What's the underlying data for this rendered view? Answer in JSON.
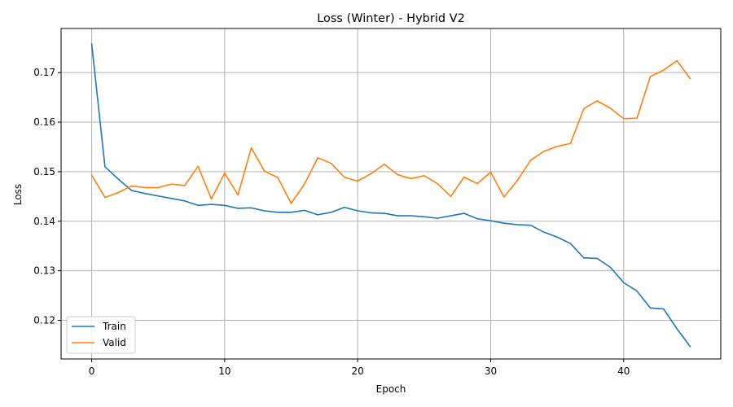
{
  "chart_data": {
    "type": "line",
    "title": "Loss (Winter) - Hybrid V2",
    "xlabel": "Epoch",
    "ylabel": "Loss",
    "xlim": [
      -2.3,
      47.3
    ],
    "ylim": [
      0.1122,
      0.1789
    ],
    "x_ticks": [
      0,
      10,
      20,
      30,
      40
    ],
    "y_ticks": [
      0.12,
      0.13,
      0.14,
      0.15,
      0.16,
      0.17
    ],
    "grid": true,
    "legend_position": "lower-left",
    "x": [
      0,
      1,
      2,
      3,
      4,
      5,
      6,
      7,
      8,
      9,
      10,
      11,
      12,
      13,
      14,
      15,
      16,
      17,
      18,
      19,
      20,
      21,
      22,
      23,
      24,
      25,
      26,
      27,
      28,
      29,
      30,
      31,
      32,
      33,
      34,
      35,
      36,
      37,
      38,
      39,
      40,
      41,
      42,
      43,
      44,
      45
    ],
    "series": [
      {
        "name": "Train",
        "color": "#1f77b4",
        "values": [
          0.1758,
          0.151,
          0.1485,
          0.1462,
          0.1456,
          0.1451,
          0.1446,
          0.1441,
          0.1432,
          0.1434,
          0.1432,
          0.1426,
          0.1427,
          0.1421,
          0.1418,
          0.1418,
          0.1422,
          0.1413,
          0.1418,
          0.1428,
          0.1421,
          0.1417,
          0.1416,
          0.1411,
          0.1411,
          0.1409,
          0.1406,
          0.1411,
          0.1416,
          0.1405,
          0.1401,
          0.1396,
          0.1393,
          0.1392,
          0.1378,
          0.1368,
          0.1355,
          0.1326,
          0.1325,
          0.1307,
          0.1276,
          0.1259,
          0.1225,
          0.1223,
          0.1183,
          0.1147
        ]
      },
      {
        "name": "Valid",
        "color": "#ff7f0e",
        "values": [
          0.1493,
          0.1448,
          0.1458,
          0.1471,
          0.1468,
          0.1468,
          0.1475,
          0.1472,
          0.1511,
          0.1445,
          0.1497,
          0.1453,
          0.1548,
          0.1501,
          0.1488,
          0.1436,
          0.1475,
          0.1528,
          0.1517,
          0.1489,
          0.1481,
          0.1496,
          0.1515,
          0.1494,
          0.1486,
          0.1492,
          0.1476,
          0.145,
          0.1489,
          0.1476,
          0.1499,
          0.1449,
          0.1482,
          0.1523,
          0.1541,
          0.1551,
          0.1557,
          0.1627,
          0.1643,
          0.1628,
          0.1607,
          0.1608,
          0.1692,
          0.1705,
          0.1724,
          0.1688
        ]
      }
    ]
  }
}
